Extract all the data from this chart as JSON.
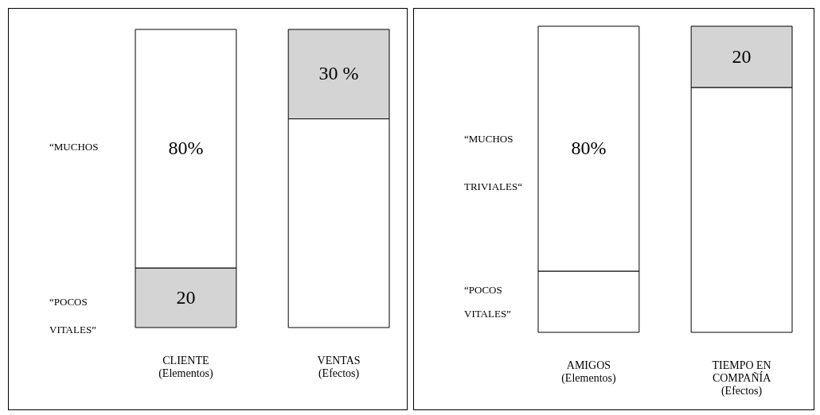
{
  "chart_data": [
    {
      "type": "bar",
      "stacked": true,
      "categories": [
        "CLIENTE\n(Elementos)",
        "VENTAS\n(Efectos)"
      ],
      "ylim": [
        0,
        100
      ],
      "tick_labels": "x",
      "annotations": [
        "“MUCHOS",
        "“POCOS",
        "VITALES”"
      ],
      "series": [
        {
          "colors": [
            "#d4d4d4",
            "#ffffff"
          ],
          "values": [
            20,
            70
          ],
          "value_labels": [
            "20",
            null
          ]
        },
        {
          "colors": [
            "#ffffff",
            "#d4d4d4"
          ],
          "values": [
            80,
            30
          ],
          "value_labels": [
            "80%",
            "30 %"
          ]
        }
      ]
    },
    {
      "type": "bar",
      "stacked": true,
      "categories": [
        "AMIGOS\n(Elementos)",
        "TIEMPO EN\nCOMPAÑÍA\n(Efectos)"
      ],
      "ylim": [
        0,
        100
      ],
      "tick_labels": "x",
      "annotations": [
        "“MUCHOS",
        "TRIVIALES“",
        "“POCOS",
        "VITALES”"
      ],
      "series": [
        {
          "colors": [
            "#ffffff",
            "#ffffff"
          ],
          "values": [
            20,
            80
          ],
          "value_labels": [
            null,
            null
          ]
        },
        {
          "colors": [
            "#ffffff",
            "#d4d4d4"
          ],
          "values": [
            80,
            20
          ],
          "value_labels": [
            "80%",
            "20"
          ]
        }
      ]
    }
  ]
}
